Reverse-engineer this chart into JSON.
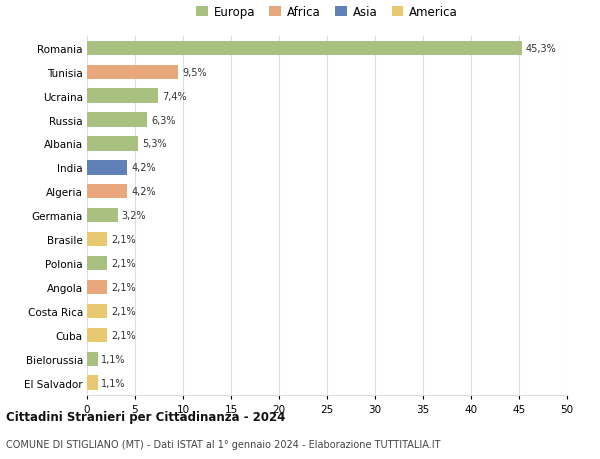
{
  "countries": [
    "Romania",
    "Tunisia",
    "Ucraina",
    "Russia",
    "Albania",
    "India",
    "Algeria",
    "Germania",
    "Brasile",
    "Polonia",
    "Angola",
    "Costa Rica",
    "Cuba",
    "Bielorussia",
    "El Salvador"
  ],
  "values": [
    45.3,
    9.5,
    7.4,
    6.3,
    5.3,
    4.2,
    4.2,
    3.2,
    2.1,
    2.1,
    2.1,
    2.1,
    2.1,
    1.1,
    1.1
  ],
  "labels": [
    "45,3%",
    "9,5%",
    "7,4%",
    "6,3%",
    "5,3%",
    "4,2%",
    "4,2%",
    "3,2%",
    "2,1%",
    "2,1%",
    "2,1%",
    "2,1%",
    "2,1%",
    "1,1%",
    "1,1%"
  ],
  "colors": [
    "#a8c080",
    "#e8a87c",
    "#a8c080",
    "#a8c080",
    "#a8c080",
    "#6080b8",
    "#e8a87c",
    "#a8c080",
    "#e8c870",
    "#a8c080",
    "#e8a87c",
    "#e8c870",
    "#e8c870",
    "#a8c080",
    "#e8c870"
  ],
  "legend_labels": [
    "Europa",
    "Africa",
    "Asia",
    "America"
  ],
  "legend_colors": [
    "#a8c080",
    "#e8a87c",
    "#6080b8",
    "#e8c870"
  ],
  "title1": "Cittadini Stranieri per Cittadinanza - 2024",
  "title2": "COMUNE DI STIGLIANO (MT) - Dati ISTAT al 1° gennaio 2024 - Elaborazione TUTTITALIA.IT",
  "xlim": [
    0,
    50
  ],
  "xticks": [
    0,
    5,
    10,
    15,
    20,
    25,
    30,
    35,
    40,
    45,
    50
  ],
  "background_color": "#ffffff",
  "grid_color": "#dddddd"
}
